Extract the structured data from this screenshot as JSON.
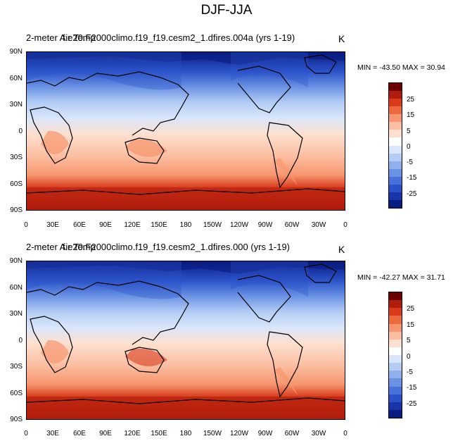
{
  "figure": {
    "title": "DJF-JJA"
  },
  "panels": [
    {
      "title_left": "2-meter Air Temp",
      "title_case": "f.e20.F2000climo.f19_f19.cesm2_1.dfires.004a (yrs 1-19)",
      "units": "K",
      "min_max": "MIN = -43.50 MAX =  30.94"
    },
    {
      "title_left": "2-meter Air Temp",
      "title_case": "f.e20.F2000climo.f19_f19.cesm2_1.dfires.000 (yrs 1-19)",
      "units": "K",
      "min_max": "MIN = -42.27 MAX =  31.71"
    }
  ],
  "axes": {
    "lat_labels": [
      "90N",
      "60N",
      "30N",
      "0",
      "30S",
      "60S",
      "90S"
    ],
    "lon_labels": [
      "0",
      "30E",
      "60E",
      "90E",
      "120E",
      "150E",
      "180",
      "150W",
      "120W",
      "90W",
      "60W",
      "30W",
      "0"
    ]
  },
  "colorbar": {
    "labels": [
      "25",
      "15",
      "5",
      "0",
      "-5",
      "-15",
      "-25"
    ],
    "colors_top_to_bottom": [
      "#6b0000",
      "#b01c0c",
      "#d83a1a",
      "#ec6a3e",
      "#f6956e",
      "#fbbea1",
      "#fde0cf",
      "#ffffff",
      "#d9e6fb",
      "#b4cdf5",
      "#8eb1ee",
      "#6a92e4",
      "#4671d8",
      "#2a52c8",
      "#1734a8",
      "#0a1c82"
    ]
  }
}
